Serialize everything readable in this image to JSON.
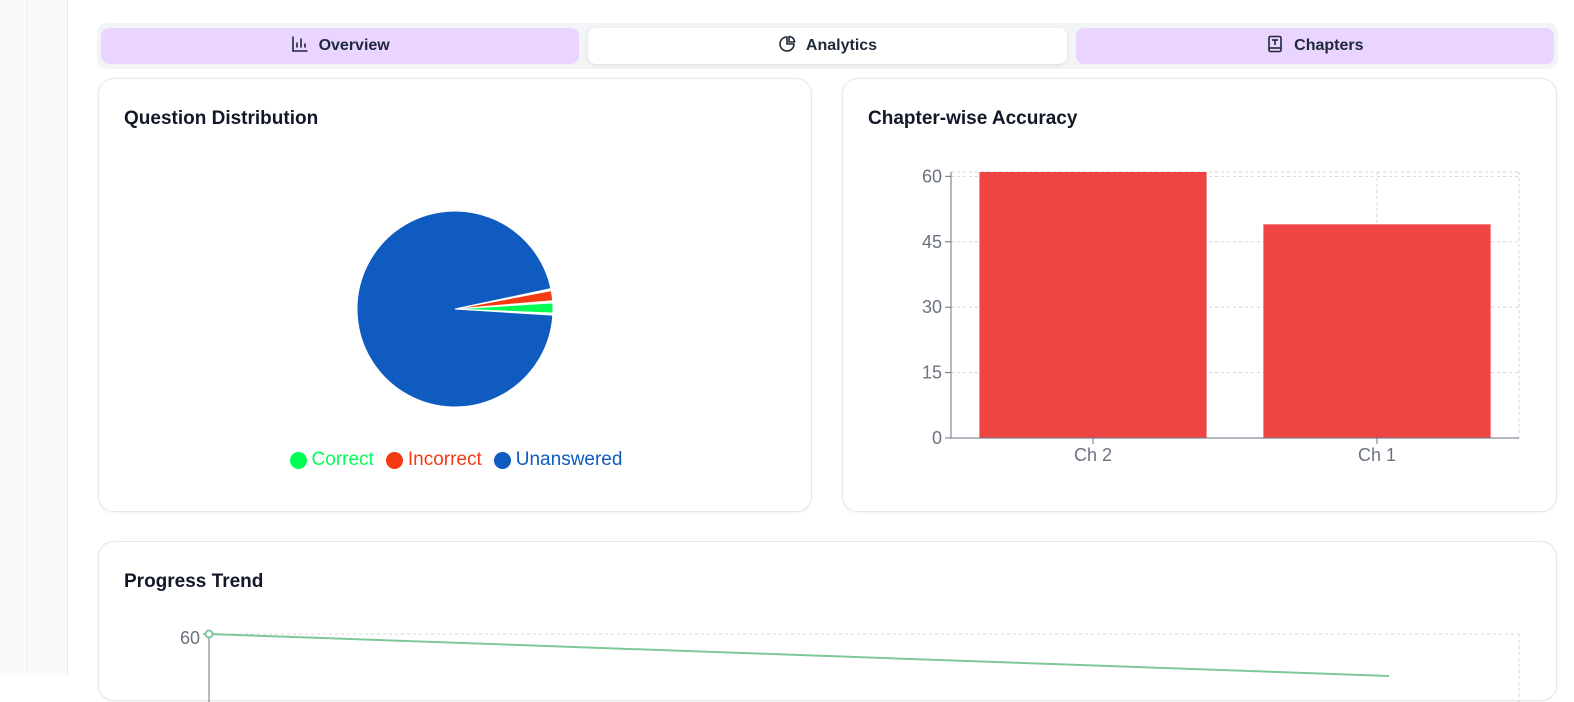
{
  "tabs": [
    {
      "label": "Overview",
      "icon": "bar-chart-icon"
    },
    {
      "label": "Analytics",
      "icon": "pie-chart-icon"
    },
    {
      "label": "Chapters",
      "icon": "book-icon"
    }
  ],
  "active_tab": "Analytics",
  "colors": {
    "tab_soft": "#e9d5ff",
    "correct": "#00ff55",
    "incorrect": "#f43a12",
    "unanswered": "#0f5bbf",
    "bar": "#ef4444",
    "trend_line": "#7ec89a"
  },
  "distribution_card": {
    "title": "Question Distribution"
  },
  "accuracy_card": {
    "title": "Chapter-wise Accuracy"
  },
  "trend_card": {
    "title": "Progress Trend"
  },
  "chart_data": [
    {
      "type": "pie",
      "categories": [
        "Correct",
        "Incorrect",
        "Unanswered"
      ],
      "values": [
        2,
        2,
        96
      ],
      "legend": "bottom",
      "colors": [
        "#00ff55",
        "#f43a12",
        "#0f5bbf"
      ]
    },
    {
      "type": "bar",
      "categories": [
        "Ch 2",
        "Ch 1"
      ],
      "values": [
        61,
        49
      ],
      "ylim": [
        0,
        61
      ],
      "yticks": [
        0,
        15,
        30,
        45,
        60
      ],
      "grid": true,
      "color": "#ef4444"
    },
    {
      "type": "line",
      "yticks": [
        60
      ],
      "values_start": 60,
      "grid": true,
      "color": "#7ec89a"
    }
  ]
}
